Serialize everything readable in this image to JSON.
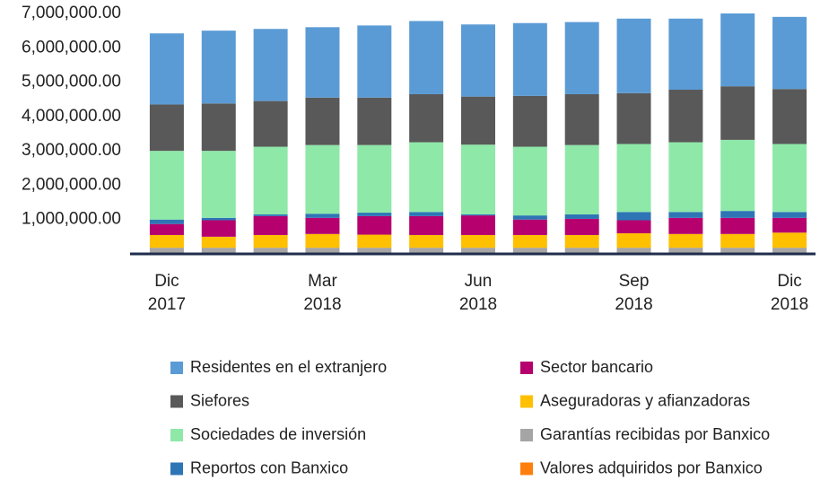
{
  "chart_data": {
    "type": "stacked_bar",
    "categories": [
      "Dic 2017",
      null,
      null,
      "Mar 2018",
      null,
      null,
      "Jun 2018",
      null,
      null,
      "Sep 2018",
      null,
      null,
      "Dic 2018"
    ],
    "ylim": [
      0,
      7000000
    ],
    "yticks": [
      {
        "value": 1000000,
        "label": "1,000,000.00"
      },
      {
        "value": 2000000,
        "label": "2,000,000.00"
      },
      {
        "value": 3000000,
        "label": "3,000,000.00"
      },
      {
        "value": 4000000,
        "label": "4,000,000.00"
      },
      {
        "value": 5000000,
        "label": "5,000,000.00"
      },
      {
        "value": 6000000,
        "label": "6,000,000.00"
      },
      {
        "value": 7000000,
        "label": "7,000,000.00"
      }
    ],
    "grid": false,
    "series": [
      {
        "name": "Residentes en el extranjero",
        "color": "#5b9bd5",
        "values": [
          2070000,
          2120000,
          2100000,
          2050000,
          2100000,
          2130000,
          2100000,
          2120000,
          2100000,
          2170000,
          2070000,
          2120000,
          2100000
        ]
      },
      {
        "name": "Siefores",
        "color": "#595959",
        "values": [
          1350000,
          1380000,
          1330000,
          1380000,
          1380000,
          1400000,
          1400000,
          1480000,
          1480000,
          1480000,
          1530000,
          1560000,
          1600000
        ]
      },
      {
        "name": "Sociedades de inversión",
        "color": "#8ee8a8",
        "values": [
          2000000,
          1950000,
          1970000,
          2000000,
          1970000,
          2030000,
          2030000,
          2000000,
          2020000,
          1980000,
          2030000,
          2070000,
          1980000
        ]
      },
      {
        "name": "Reportos con Banxico",
        "color": "#2e75b6",
        "values": [
          130000,
          70000,
          50000,
          120000,
          100000,
          120000,
          30000,
          120000,
          130000,
          240000,
          170000,
          200000,
          170000
        ]
      },
      {
        "name": "Sector bancario",
        "color": "#b5006e",
        "values": [
          320000,
          480000,
          550000,
          470000,
          540000,
          550000,
          570000,
          450000,
          470000,
          380000,
          470000,
          470000,
          430000
        ]
      },
      {
        "name": "Aseguradoras y afianzadoras",
        "color": "#ffc000",
        "values": [
          370000,
          320000,
          370000,
          400000,
          380000,
          370000,
          370000,
          370000,
          370000,
          420000,
          400000,
          400000,
          440000
        ]
      },
      {
        "name": "Garantías recibidas por Banxico",
        "color": "#a5a5a5",
        "values": [
          170000,
          170000,
          170000,
          170000,
          170000,
          170000,
          170000,
          170000,
          170000,
          170000,
          170000,
          170000,
          170000
        ]
      },
      {
        "name": "Valores adquiridos por Banxico",
        "color": "#ff7f0e",
        "values": [
          10000,
          10000,
          10000,
          10000,
          10000,
          10000,
          10000,
          10000,
          10000,
          10000,
          10000,
          10000,
          10000
        ]
      }
    ]
  }
}
